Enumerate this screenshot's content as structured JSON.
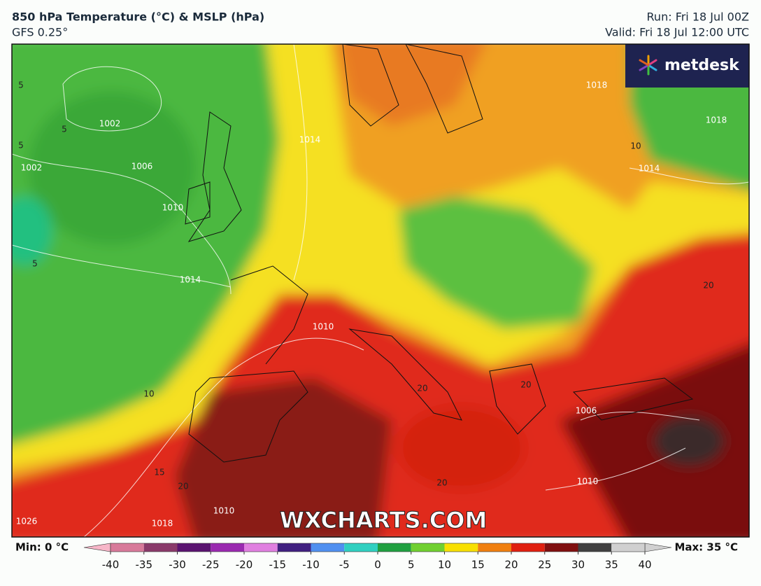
{
  "header": {
    "title": "850 hPa Temperature (°C) & MSLP (hPa)",
    "model": "GFS 0.25°",
    "run": "Run: Fri 18 Jul 00Z",
    "valid": "Valid: Fri 18 Jul 12:00 UTC"
  },
  "logo": "metdesk",
  "watermark": "WXCHARTS.COM",
  "map": {
    "isobar_labels": [
      1002,
      1002,
      1006,
      1010,
      1010,
      1010,
      1010,
      1014,
      1014,
      1014,
      1018,
      1018,
      1018,
      1026,
      1006
    ],
    "isotherm_labels": [
      5,
      5,
      5,
      5,
      10,
      10,
      15,
      20,
      20,
      20,
      20,
      20
    ]
  },
  "colorbar": {
    "min_label": "Min: 0 °C",
    "max_label": "Max: 35 °C",
    "ticks": [
      -40,
      -35,
      -30,
      -25,
      -20,
      -15,
      -10,
      -5,
      0,
      5,
      10,
      15,
      20,
      25,
      30,
      35,
      40
    ],
    "colors": [
      "#f7b6c8",
      "#d87a9a",
      "#8a3a6a",
      "#5a1470",
      "#9a2ab0",
      "#e080e0",
      "#402080",
      "#5090f0",
      "#30d0c0",
      "#20a040",
      "#70d030",
      "#f8e000",
      "#f08010",
      "#e02010",
      "#801010",
      "#404040",
      "#d0d0d0"
    ]
  }
}
